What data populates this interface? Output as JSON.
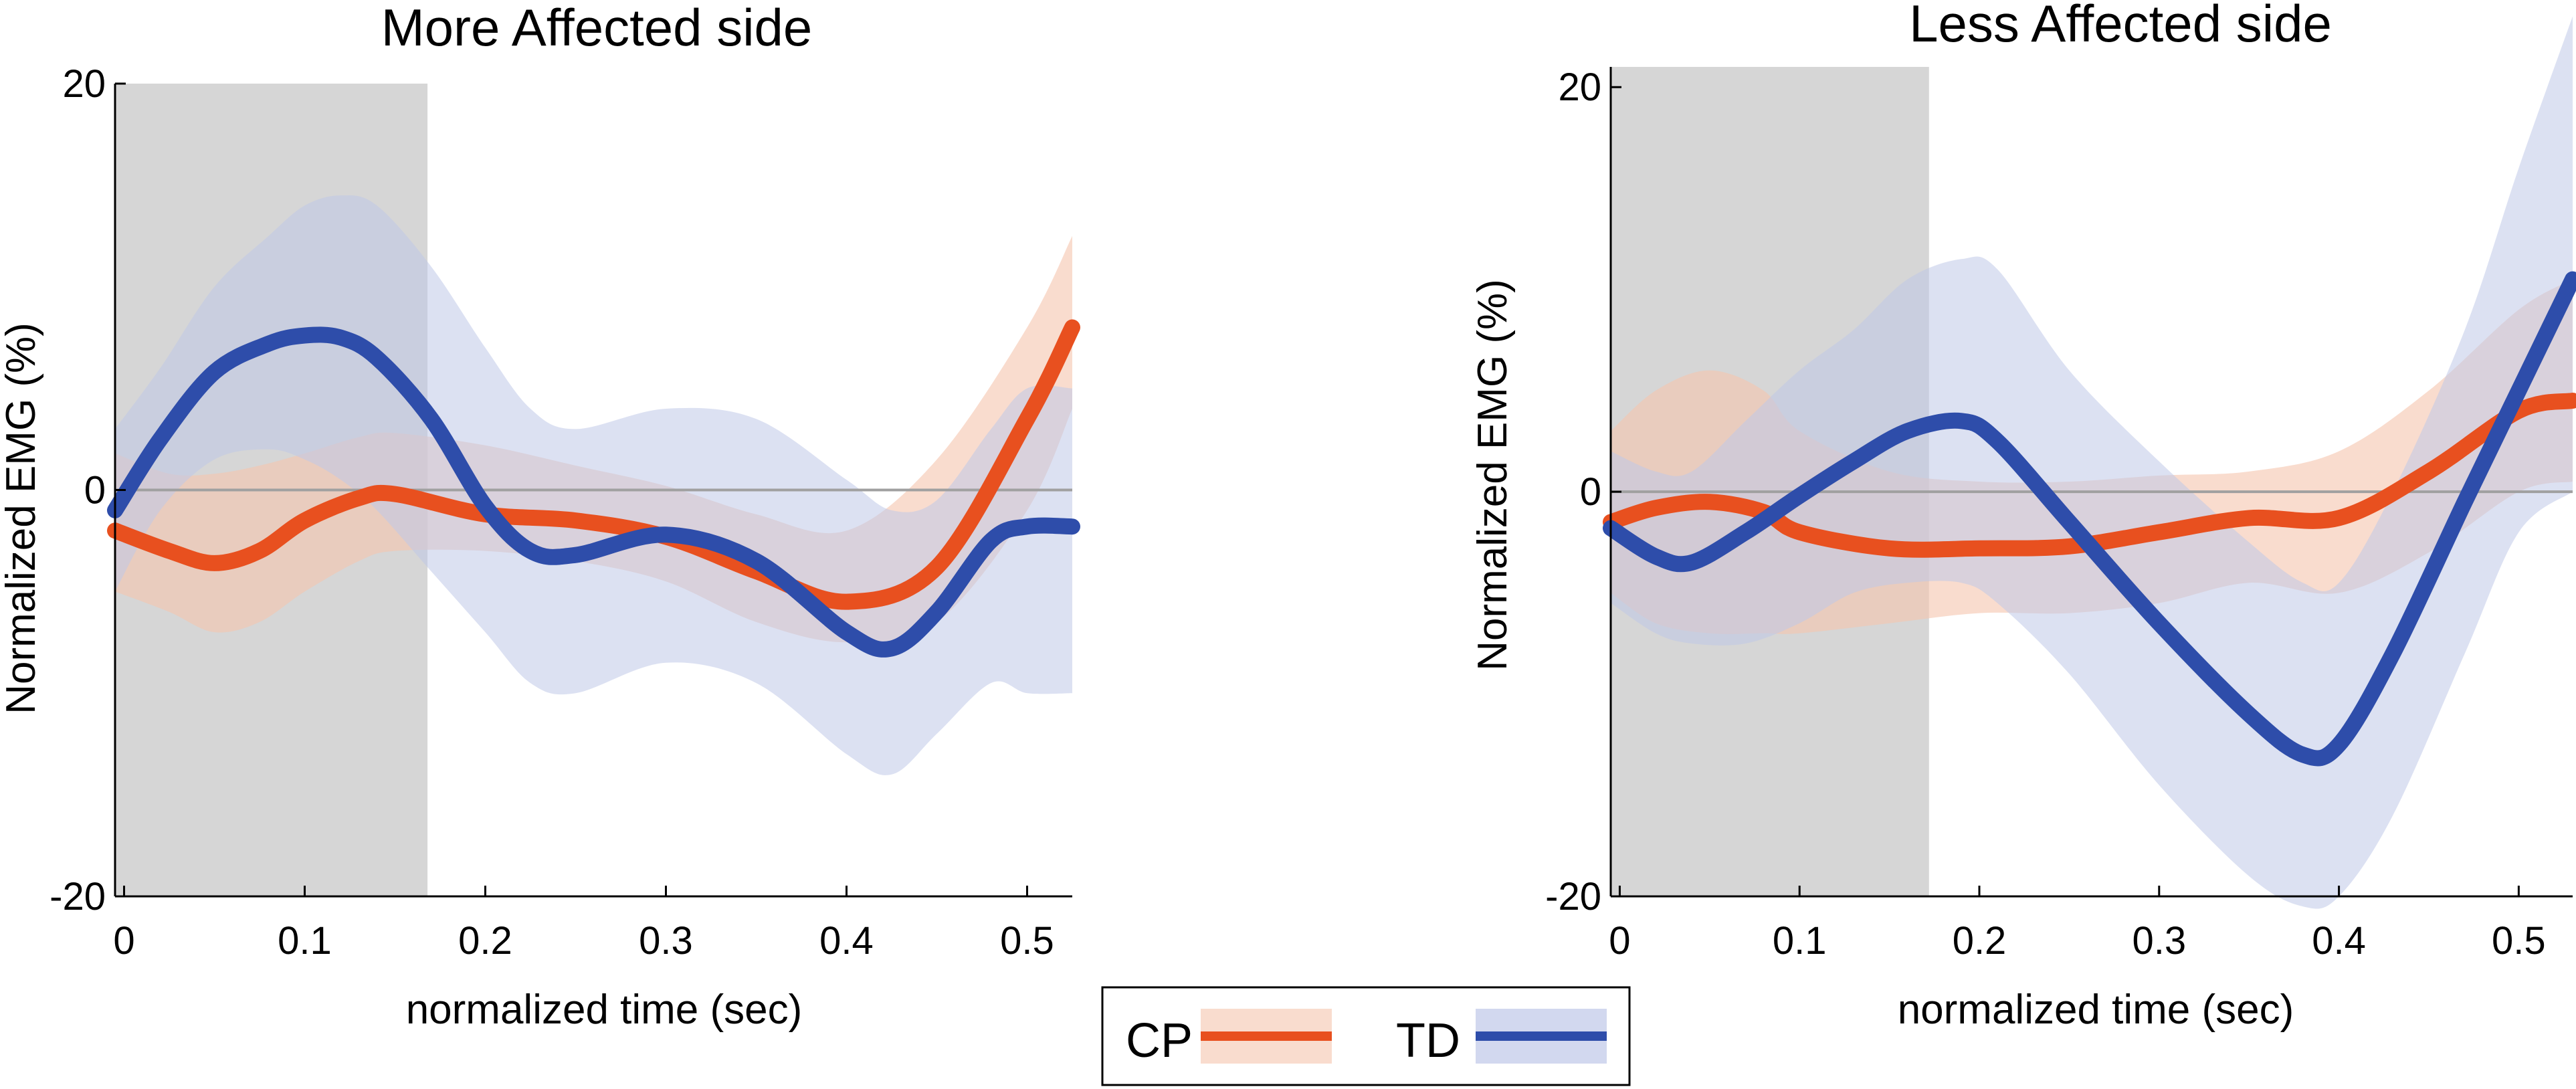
{
  "colors": {
    "cp_line": "#E8501F",
    "cp_band": "#F5C4AE",
    "td_line": "#2E4DAA",
    "td_band": "#BFC8E8",
    "stim_shade": "#D6D6D6",
    "zero_line": "#A0A0A0"
  },
  "legend": {
    "items": [
      {
        "label": "CP",
        "color": "#E8501F",
        "band": "#F5C4AE"
      },
      {
        "label": "TD",
        "color": "#2E4DAA",
        "band": "#BFC8E8"
      }
    ]
  },
  "chart_data": [
    {
      "type": "line",
      "title": "More Affected side",
      "xlabel": "normalized time (sec)",
      "ylabel": "Normalized EMG (%)",
      "xlim": [
        -0.005,
        0.525
      ],
      "ylim": [
        -20,
        20
      ],
      "xticks": [
        0,
        0.1,
        0.2,
        0.3,
        0.4,
        0.5
      ],
      "xticklabels": [
        "0",
        "0.1",
        "0.2",
        "0.3",
        "0.4",
        "0.5"
      ],
      "yticks": [
        -20,
        0,
        20
      ],
      "yticklabels": [
        "-20",
        "0",
        "20"
      ],
      "shaded_interval": [
        -0.005,
        0.168
      ],
      "reference_line_y": 0,
      "series": [
        {
          "name": "CP",
          "x": [
            -0.005,
            0.025,
            0.05,
            0.075,
            0.1,
            0.13,
            0.15,
            0.2,
            0.25,
            0.3,
            0.35,
            0.4,
            0.45,
            0.5,
            0.525
          ],
          "y": [
            -2.0,
            -3.0,
            -3.6,
            -3.0,
            -1.5,
            -0.4,
            -0.2,
            -1.2,
            -1.5,
            -2.3,
            -4.0,
            -5.5,
            -3.8,
            3.5,
            8.0
          ],
          "upper": [
            1.8,
            0.8,
            0.8,
            1.2,
            1.8,
            2.6,
            2.8,
            2.2,
            1.2,
            0.2,
            -1.2,
            -2.0,
            1.5,
            8.0,
            12.5
          ],
          "lower": [
            -5.0,
            -6.0,
            -7.0,
            -6.5,
            -5.0,
            -3.5,
            -3.0,
            -3.0,
            -3.5,
            -4.5,
            -6.5,
            -7.5,
            -6.5,
            -1.0,
            4.0
          ]
        },
        {
          "name": "TD",
          "x": [
            -0.005,
            0.02,
            0.05,
            0.08,
            0.1,
            0.12,
            0.14,
            0.17,
            0.2,
            0.225,
            0.25,
            0.3,
            0.35,
            0.4,
            0.425,
            0.45,
            0.48,
            0.5,
            0.525
          ],
          "y": [
            -1.0,
            2.5,
            5.8,
            7.2,
            7.6,
            7.5,
            6.5,
            3.5,
            -0.8,
            -3.0,
            -3.2,
            -2.2,
            -3.5,
            -7.0,
            -7.8,
            -6.0,
            -2.5,
            -1.8,
            -1.8
          ],
          "upper": [
            3.0,
            6.0,
            10.0,
            12.5,
            14.0,
            14.5,
            14.0,
            11.0,
            7.0,
            4.0,
            3.0,
            4.0,
            3.5,
            0.5,
            -1.0,
            -0.5,
            3.0,
            5.0,
            5.0
          ],
          "lower": [
            -5.0,
            -1.0,
            1.5,
            2.0,
            1.5,
            0.5,
            -1.0,
            -4.0,
            -7.0,
            -9.5,
            -10.0,
            -8.5,
            -9.5,
            -13.0,
            -14.0,
            -12.0,
            -9.5,
            -10.0,
            -10.0
          ]
        }
      ]
    },
    {
      "type": "line",
      "title": "Less Affected side",
      "xlabel": "normalized time (sec)",
      "ylabel": "Normalized EMG (%)",
      "xlim": [
        -0.005,
        0.53
      ],
      "ylim": [
        -20,
        21
      ],
      "xticks": [
        0,
        0.1,
        0.2,
        0.3,
        0.4,
        0.5
      ],
      "xticklabels": [
        "0",
        "0.1",
        "0.2",
        "0.3",
        "0.4",
        "0.5"
      ],
      "yticks": [
        -20,
        0,
        20
      ],
      "yticklabels": [
        "-20",
        "0",
        "20"
      ],
      "shaded_interval": [
        -0.005,
        0.172
      ],
      "reference_line_y": 0,
      "series": [
        {
          "name": "CP",
          "x": [
            -0.005,
            0.02,
            0.05,
            0.08,
            0.1,
            0.15,
            0.2,
            0.25,
            0.3,
            0.35,
            0.4,
            0.45,
            0.5,
            0.53
          ],
          "y": [
            -1.5,
            -0.8,
            -0.5,
            -1.0,
            -2.0,
            -2.8,
            -2.8,
            -2.7,
            -2.0,
            -1.3,
            -1.3,
            1.0,
            4.0,
            4.5
          ],
          "upper": [
            3.0,
            5.0,
            6.0,
            5.0,
            3.0,
            1.0,
            0.5,
            0.5,
            0.8,
            1.0,
            2.0,
            5.0,
            9.0,
            10.5
          ],
          "lower": [
            -5.0,
            -6.5,
            -7.0,
            -7.0,
            -7.0,
            -6.5,
            -6.0,
            -6.0,
            -5.5,
            -4.5,
            -5.0,
            -3.0,
            0.0,
            0.5
          ]
        },
        {
          "name": "TD",
          "x": [
            -0.005,
            0.02,
            0.04,
            0.07,
            0.1,
            0.13,
            0.16,
            0.19,
            0.21,
            0.25,
            0.3,
            0.35,
            0.38,
            0.4,
            0.43,
            0.47,
            0.5,
            0.53
          ],
          "y": [
            -1.8,
            -3.2,
            -3.5,
            -2.0,
            -0.2,
            1.5,
            3.0,
            3.5,
            2.5,
            -1.5,
            -6.5,
            -11.0,
            -13.0,
            -12.5,
            -8.0,
            -0.5,
            5.0,
            10.5
          ],
          "upper": [
            2.0,
            1.0,
            1.0,
            3.5,
            6.0,
            8.0,
            10.5,
            11.5,
            11.0,
            6.0,
            1.5,
            -2.5,
            -4.5,
            -4.5,
            0.0,
            8.0,
            16.0,
            23.5
          ],
          "lower": [
            -5.5,
            -7.0,
            -7.5,
            -7.5,
            -6.5,
            -5.0,
            -4.5,
            -4.5,
            -5.5,
            -9.0,
            -14.5,
            -19.0,
            -20.5,
            -20.0,
            -16.0,
            -8.0,
            -2.0,
            0.0
          ]
        }
      ]
    }
  ]
}
